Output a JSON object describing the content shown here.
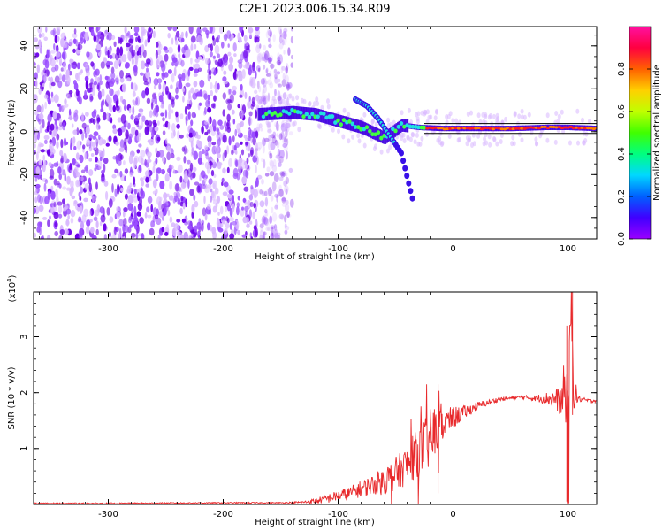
{
  "title": "C2E1.2023.006.15.34.R09",
  "colors": {
    "axis": "#000000",
    "snr_line": "#e8292b",
    "noise_light": "#d9b8ff",
    "noise_mid": "#9a4dff",
    "noise_dark": "#6a00e8",
    "signal_cyan": "#20e0e0",
    "signal_green": "#40ff40",
    "signal_red": "#ff2020"
  },
  "chart_data": [
    {
      "type": "heatmap",
      "name": "spectrogram",
      "xlabel": "Height of straight line (km)",
      "ylabel": "Frequency (Hz)",
      "xlim": [
        -365,
        125
      ],
      "ylim": [
        -50,
        49
      ],
      "xticks": [
        -300,
        -200,
        -100,
        0,
        100
      ],
      "yticks": [
        -40,
        -20,
        0,
        20,
        40
      ],
      "colorbar": {
        "label": "Normalized spectral amplitude",
        "range": [
          0.0,
          1.0
        ],
        "ticks": [
          0.0,
          0.2,
          0.4,
          0.6,
          0.8
        ],
        "colormap": [
          "#9a00ff",
          "#4000ff",
          "#0060ff",
          "#00d8ff",
          "#00ff80",
          "#40ff00",
          "#c0ff00",
          "#ffd000",
          "#ff6000",
          "#ff0040",
          "#ff10a0"
        ]
      },
      "signal_track": {
        "x": [
          -170,
          -140,
          -120,
          -100,
          -80,
          -60,
          -45,
          -30,
          -10,
          0,
          20,
          50,
          80,
          100,
          125
        ],
        "y": [
          8,
          9,
          8,
          5,
          2,
          -3,
          3,
          2,
          1.5,
          1.5,
          1.5,
          1.5,
          2,
          2,
          1.5
        ]
      },
      "dispersive_branch": {
        "x": [
          -85,
          -75,
          -65,
          -55,
          -45,
          -35
        ],
        "y": [
          15,
          12,
          6,
          -2,
          -10,
          -32
        ]
      }
    },
    {
      "type": "line",
      "name": "snr",
      "xlabel": "Height of straight line (km)",
      "ylabel": "SNR (10 * v/v)",
      "multiplier_label": "(x10",
      "multiplier_exp": "4",
      "multiplier_close": ")",
      "xlim": [
        -365,
        125
      ],
      "ylim": [
        0,
        3.8
      ],
      "xticks": [
        -300,
        -200,
        -100,
        0,
        100
      ],
      "yticks": [
        1,
        2,
        3
      ],
      "series": [
        {
          "x": [
            -365,
            -300,
            -200,
            -150,
            -130,
            -120,
            -110,
            -100,
            -90,
            -80,
            -70,
            -60,
            -50,
            -40,
            -30,
            -20,
            -15,
            -10,
            0,
            10,
            20,
            30,
            40,
            50,
            60,
            70,
            80,
            90,
            95,
            98,
            100,
            103,
            105,
            110,
            120,
            125
          ],
          "y": [
            0.02,
            0.02,
            0.03,
            0.03,
            0.04,
            0.06,
            0.1,
            0.15,
            0.2,
            0.28,
            0.35,
            0.42,
            0.55,
            0.7,
            0.95,
            1.15,
            1.3,
            1.4,
            1.55,
            1.65,
            1.75,
            1.82,
            1.88,
            1.9,
            1.92,
            1.9,
            1.9,
            1.88,
            1.85,
            2.2,
            1.9,
            3.5,
            2.0,
            1.88,
            1.85,
            1.86
          ],
          "noise_amp": [
            0.01,
            0.01,
            0.01,
            0.01,
            0.02,
            0.05,
            0.08,
            0.1,
            0.12,
            0.15,
            0.18,
            0.25,
            0.3,
            0.35,
            0.45,
            0.55,
            0.5,
            0.3,
            0.2,
            0.12,
            0.08,
            0.05,
            0.04,
            0.03,
            0.03,
            0.05,
            0.1,
            0.2,
            0.3,
            0.8,
            0.4,
            0.5,
            0.3,
            0.05,
            0.03,
            0.03
          ]
        }
      ]
    }
  ]
}
